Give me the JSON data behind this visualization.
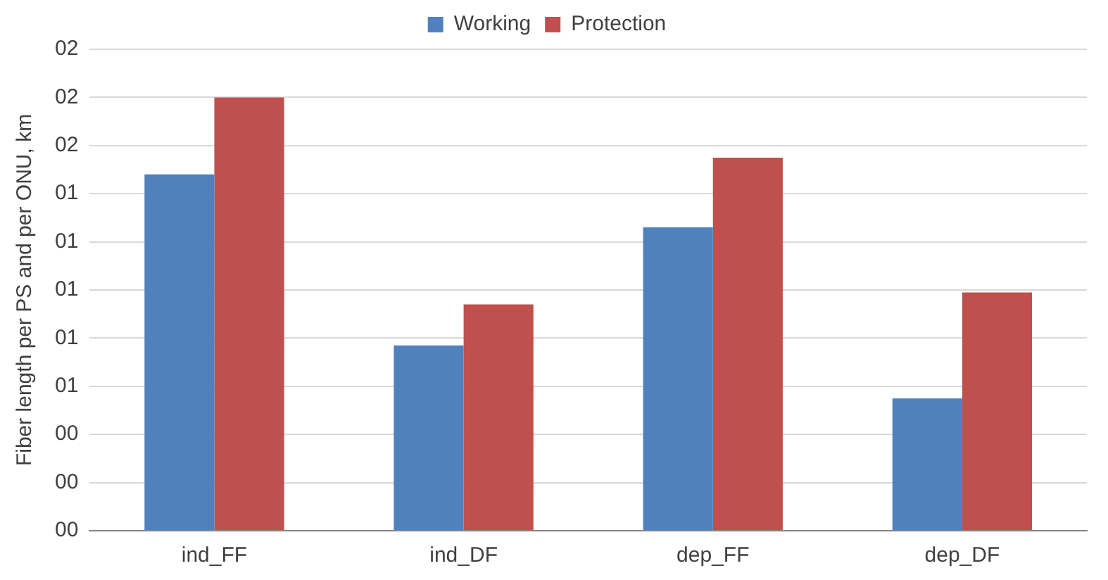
{
  "chart_data": {
    "type": "bar",
    "ylabel": "Fiber length per PS and per ONU, km",
    "categories": [
      "ind_FF",
      "ind_DF",
      "dep_FF",
      "dep_DF"
    ],
    "series": [
      {
        "name": "Working",
        "color": "#4f81bd",
        "values": [
          1.48,
          0.77,
          1.26,
          0.55
        ]
      },
      {
        "name": "Protection",
        "color": "#c0504d",
        "values": [
          1.8,
          0.94,
          1.55,
          0.99
        ]
      }
    ],
    "ylim": [
      0,
      2
    ],
    "yticks": [
      {
        "value": 0,
        "label": "00"
      },
      {
        "value": 0.2,
        "label": "00"
      },
      {
        "value": 0.4,
        "label": "00"
      },
      {
        "value": 0.6,
        "label": "01"
      },
      {
        "value": 0.8,
        "label": "01"
      },
      {
        "value": 1,
        "label": "01"
      },
      {
        "value": 1.2,
        "label": "01"
      },
      {
        "value": 1.4,
        "label": "01"
      },
      {
        "value": 1.6,
        "label": "02"
      },
      {
        "value": 1.8,
        "label": "02"
      },
      {
        "value": 2,
        "label": "02"
      }
    ],
    "grid": "y",
    "legend": "top"
  }
}
